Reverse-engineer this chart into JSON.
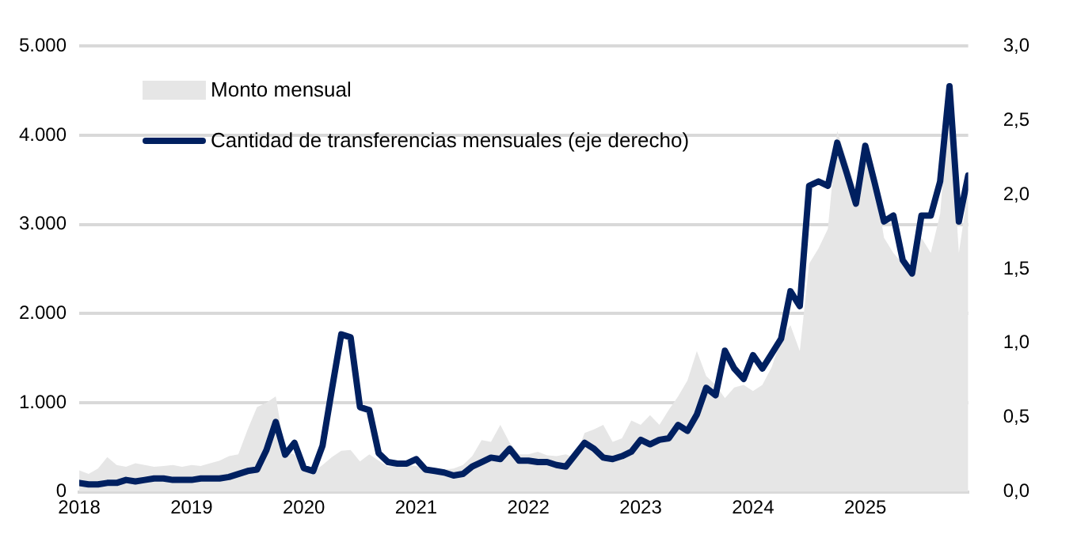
{
  "chart_data": {
    "type": "area",
    "x": [
      "2018-01",
      "2018-02",
      "2018-03",
      "2018-04",
      "2018-05",
      "2018-06",
      "2018-07",
      "2018-08",
      "2018-09",
      "2018-10",
      "2018-11",
      "2018-12",
      "2019-01",
      "2019-02",
      "2019-03",
      "2019-04",
      "2019-05",
      "2019-06",
      "2019-07",
      "2019-08",
      "2019-09",
      "2019-10",
      "2019-11",
      "2019-12",
      "2020-01",
      "2020-02",
      "2020-03",
      "2020-04",
      "2020-05",
      "2020-06",
      "2020-07",
      "2020-08",
      "2020-09",
      "2020-10",
      "2020-11",
      "2020-12",
      "2021-01",
      "2021-02",
      "2021-03",
      "2021-04",
      "2021-05",
      "2021-06",
      "2021-07",
      "2021-08",
      "2021-09",
      "2021-10",
      "2021-11",
      "2021-12",
      "2022-01",
      "2022-02",
      "2022-03",
      "2022-04",
      "2022-05",
      "2022-06",
      "2022-07",
      "2022-08",
      "2022-09",
      "2022-10",
      "2022-11",
      "2022-12",
      "2023-01",
      "2023-02",
      "2023-03",
      "2023-04",
      "2023-05",
      "2023-06",
      "2023-07",
      "2023-08",
      "2023-09",
      "2023-10",
      "2023-11",
      "2023-12",
      "2024-01",
      "2024-02",
      "2024-03",
      "2024-04",
      "2024-05",
      "2024-06",
      "2024-07",
      "2024-08",
      "2024-09",
      "2024-10",
      "2024-11",
      "2024-12",
      "2025-01",
      "2025-02",
      "2025-03",
      "2025-04",
      "2025-05",
      "2025-06",
      "2025-07",
      "2025-08",
      "2025-09",
      "2025-10",
      "2025-11",
      "2025-12"
    ],
    "series": [
      {
        "name": "Monto mensual",
        "color": "#e6e6e6",
        "values": [
          240,
          200,
          260,
          390,
          300,
          280,
          320,
          300,
          280,
          290,
          300,
          280,
          300,
          290,
          320,
          350,
          400,
          420,
          700,
          950,
          1000,
          1070,
          450,
          420,
          260,
          220,
          300,
          390,
          460,
          470,
          340,
          420,
          350,
          280,
          300,
          300,
          290,
          260,
          250,
          250,
          260,
          300,
          400,
          580,
          560,
          750,
          550,
          420,
          420,
          450,
          410,
          400,
          420,
          380,
          660,
          700,
          750,
          560,
          600,
          800,
          750,
          860,
          750,
          920,
          1070,
          1250,
          1580,
          1300,
          1200,
          1050,
          1170,
          1200,
          1130,
          1200,
          1400,
          1710,
          1870,
          1580,
          2560,
          2730,
          2950,
          4050,
          3730,
          3390,
          3900,
          3500,
          2850,
          2680,
          2560,
          2420,
          2850,
          2680,
          3120,
          4390,
          2680,
          3400
        ]
      },
      {
        "name": "Cantidad de transferencias mensuales (eje derecho)",
        "type": "line",
        "axis": "y2",
        "color": "#002060",
        "values": [
          0.06,
          0.05,
          0.05,
          0.06,
          0.06,
          0.08,
          0.07,
          0.08,
          0.09,
          0.09,
          0.08,
          0.08,
          0.08,
          0.09,
          0.09,
          0.09,
          0.1,
          0.12,
          0.14,
          0.15,
          0.28,
          0.47,
          0.25,
          0.33,
          0.16,
          0.14,
          0.31,
          0.69,
          1.06,
          1.04,
          0.57,
          0.55,
          0.26,
          0.2,
          0.19,
          0.19,
          0.22,
          0.15,
          0.14,
          0.13,
          0.11,
          0.12,
          0.17,
          0.2,
          0.23,
          0.22,
          0.29,
          0.21,
          0.21,
          0.2,
          0.2,
          0.18,
          0.17,
          0.25,
          0.33,
          0.29,
          0.23,
          0.22,
          0.24,
          0.27,
          0.35,
          0.32,
          0.35,
          0.36,
          0.45,
          0.41,
          0.52,
          0.7,
          0.65,
          0.95,
          0.83,
          0.76,
          0.92,
          0.83,
          0.93,
          1.03,
          1.35,
          1.25,
          2.06,
          2.09,
          2.06,
          2.35,
          2.15,
          1.94,
          2.33,
          2.08,
          1.82,
          1.86,
          1.56,
          1.47,
          1.86,
          1.86,
          2.09,
          2.73,
          1.82,
          2.13
        ]
      }
    ],
    "xlim": [
      "2018-01",
      "2025-12"
    ],
    "xticks": [
      "2018",
      "2019",
      "2020",
      "2021",
      "2022",
      "2023",
      "2024",
      "2025"
    ],
    "ylim": [
      0,
      5000
    ],
    "yticks": [
      {
        "value": 0,
        "label": "0"
      },
      {
        "value": 1000,
        "label": "1.000"
      },
      {
        "value": 2000,
        "label": "2.000"
      },
      {
        "value": 3000,
        "label": "3.000"
      },
      {
        "value": 4000,
        "label": "4.000"
      },
      {
        "value": 5000,
        "label": "5.000"
      }
    ],
    "y2lim": [
      0,
      3
    ],
    "y2ticks": [
      {
        "value": 0,
        "label": "0,0"
      },
      {
        "value": 0.5,
        "label": "0,5"
      },
      {
        "value": 1,
        "label": "1,0"
      },
      {
        "value": 1.5,
        "label": "1,5"
      },
      {
        "value": 2,
        "label": "2,0"
      },
      {
        "value": 2.5,
        "label": "2,5"
      },
      {
        "value": 3,
        "label": "3,0"
      }
    ],
    "grid": "y",
    "legend": "top left",
    "marker": "none",
    "line_style": "solid"
  }
}
